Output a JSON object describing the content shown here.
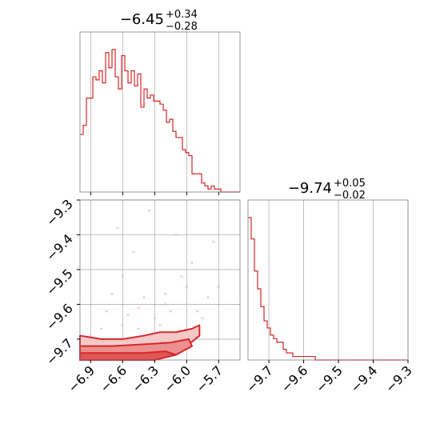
{
  "chart_data": [
    {
      "type": "histogram",
      "panel": "marginal-1",
      "title": "−6.45",
      "title_plus": "+0.34",
      "title_minus": "−0.28",
      "xlim": [
        -7.0,
        -5.5
      ],
      "color": "#d62728",
      "bin_edges_start": -7.0,
      "bin_width": 0.03,
      "counts": [
        19,
        22,
        31,
        31,
        38,
        37,
        40,
        36,
        46,
        41,
        47,
        38,
        34,
        45,
        40,
        36,
        40,
        35,
        39,
        28,
        34,
        31,
        32,
        30,
        30,
        29,
        27,
        23,
        24,
        20,
        18,
        18,
        14,
        13,
        12,
        6,
        6,
        6,
        3,
        2,
        1,
        2,
        1,
        1,
        0,
        0,
        0,
        0,
        0,
        0
      ],
      "xticks": [
        -6.9,
        -6.6,
        -6.3,
        -6.0,
        -5.7
      ]
    },
    {
      "type": "histogram",
      "panel": "marginal-2",
      "title": "−9.74",
      "title_plus": "+0.05",
      "title_minus": "−0.02",
      "xlim": [
        -9.76,
        -9.3
      ],
      "color": "#d62728",
      "bin_edges_start": -9.76,
      "bin_width": 0.0092,
      "counts": [
        40,
        34,
        25,
        20,
        15,
        11,
        9,
        7,
        6,
        5,
        5,
        3,
        2,
        2,
        1,
        1,
        1,
        1,
        1,
        1,
        1,
        0,
        0,
        0,
        0,
        0,
        0,
        0,
        0,
        0,
        0,
        0,
        0,
        0,
        0,
        0,
        0,
        0,
        0,
        0,
        0,
        0,
        0,
        0,
        0,
        0,
        0,
        0,
        0,
        0
      ],
      "xticks": [
        -9.7,
        -9.6,
        -9.5,
        -9.4,
        -9.3
      ],
      "xtick_labels": [
        "−9.7",
        "−9.6",
        "−9.5",
        "−9.4",
        "−9.3"
      ]
    },
    {
      "type": "contour",
      "panel": "joint",
      "xlim": [
        -7.0,
        -5.5
      ],
      "ylim": [
        -9.76,
        -9.3
      ],
      "xticks": [
        -6.9,
        -6.6,
        -6.3,
        -6.0,
        -5.7
      ],
      "xtick_labels": [
        "−6.9",
        "−6.6",
        "−6.3",
        "−6.0",
        "−5.7"
      ],
      "yticks": [
        -9.3,
        -9.4,
        -9.5,
        -9.6,
        -9.7
      ],
      "ytick_labels": [
        "−9.3",
        "−9.4",
        "−9.5",
        "−9.6",
        "−9.7"
      ],
      "color": "#d62728",
      "contour_levels": [
        [
          [
            -7.0,
            -9.69
          ],
          [
            -6.8,
            -9.7
          ],
          [
            -6.6,
            -9.7
          ],
          [
            -6.4,
            -9.69
          ],
          [
            -6.25,
            -9.68
          ],
          [
            -6.1,
            -9.68
          ],
          [
            -5.95,
            -9.67
          ],
          [
            -5.88,
            -9.66
          ],
          [
            -5.88,
            -9.69
          ],
          [
            -6.0,
            -9.72
          ],
          [
            -6.2,
            -9.745
          ],
          [
            -6.5,
            -9.76
          ],
          [
            -7.0,
            -9.76
          ]
        ],
        [
          [
            -7.0,
            -9.72
          ],
          [
            -6.7,
            -9.72
          ],
          [
            -6.4,
            -9.715
          ],
          [
            -6.15,
            -9.71
          ],
          [
            -5.98,
            -9.7
          ],
          [
            -5.95,
            -9.72
          ],
          [
            -6.1,
            -9.745
          ],
          [
            -6.4,
            -9.76
          ],
          [
            -7.0,
            -9.76
          ]
        ],
        [
          [
            -7.0,
            -9.74
          ],
          [
            -6.7,
            -9.74
          ],
          [
            -6.4,
            -9.74
          ],
          [
            -6.2,
            -9.735
          ],
          [
            -6.1,
            -9.745
          ],
          [
            -6.3,
            -9.76
          ],
          [
            -7.0,
            -9.76
          ]
        ]
      ],
      "scatter": [
        [
          -6.05,
          -9.68
        ],
        [
          -6.3,
          -9.64
        ],
        [
          -6.6,
          -9.66
        ],
        [
          -5.9,
          -9.62
        ],
        [
          -6.8,
          -9.67
        ],
        [
          -6.45,
          -9.67
        ],
        [
          -6.2,
          -9.6
        ],
        [
          -6.0,
          -9.55
        ],
        [
          -5.8,
          -9.58
        ],
        [
          -6.5,
          -9.45
        ],
        [
          -6.1,
          -9.4
        ],
        [
          -6.35,
          -9.33
        ],
        [
          -6.65,
          -9.38
        ],
        [
          -5.75,
          -9.42
        ],
        [
          -6.75,
          -9.62
        ],
        [
          -6.9,
          -9.69
        ],
        [
          -6.25,
          -9.66
        ],
        [
          -6.15,
          -9.62
        ],
        [
          -5.85,
          -9.64
        ],
        [
          -6.55,
          -9.63
        ],
        [
          -6.4,
          -9.58
        ],
        [
          -6.7,
          -9.57
        ],
        [
          -6.05,
          -9.52
        ],
        [
          -5.95,
          -9.48
        ],
        [
          -6.3,
          -9.5
        ],
        [
          -6.6,
          -9.52
        ],
        [
          -5.7,
          -9.55
        ],
        [
          -6.45,
          -9.61
        ],
        [
          -6.2,
          -9.57
        ],
        [
          -6.0,
          -9.6
        ]
      ]
    }
  ]
}
